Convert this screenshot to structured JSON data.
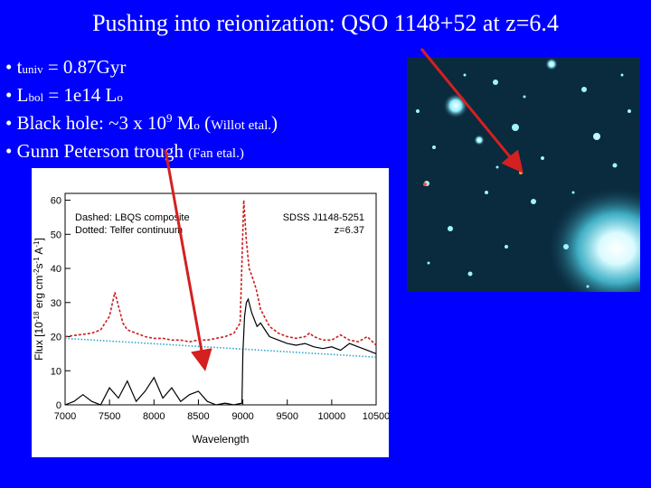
{
  "slide": {
    "title": "Pushing into reionization: QSO 1148+52 at z=6.4",
    "bullets": [
      {
        "bullet": "•",
        "main": "t",
        "sub": "univ",
        "rest": " = 0.87Gyr"
      },
      {
        "bullet": "•",
        "main": "L",
        "sub": "bol",
        "rest": " = 1e14 L",
        "sub2": "o"
      },
      {
        "bullet": "•",
        "main": "Black hole: ~3 x 10",
        "sup": "9",
        "rest": " M",
        "sub": "o",
        "paren_open": " (",
        "cite": "Willot etal.",
        "paren_close": ")"
      },
      {
        "bullet": "•",
        "main": "Gunn Peterson trough ",
        "cite": "(Fan etal.)"
      }
    ]
  },
  "colors": {
    "background": "#0000ff",
    "arrow": "#d42020",
    "composite": "#c81e1e",
    "continuum": "#2aa6c9",
    "spectrum": "#000000"
  },
  "chart_data": {
    "type": "line",
    "xlabel": "Wavelength",
    "ylabel": "Flux [10^-18 erg cm^-2 s^-1 A^-1]",
    "ylabel_parts": {
      "base": "Flux [10",
      "e1": "-18",
      "mid": " erg cm",
      "e2": "-2",
      "s": "s",
      "e3": "-1",
      "a": " A",
      "e4": "-1",
      "close": "]"
    },
    "xlim": [
      7000,
      10500
    ],
    "ylim": [
      0,
      62
    ],
    "xticks": [
      "7000",
      "7500",
      "8000",
      "8500",
      "9000",
      "9500",
      "10000",
      "10500"
    ],
    "yticks": [
      "0",
      "10",
      "20",
      "30",
      "40",
      "50",
      "60"
    ],
    "annotations": {
      "legend_line1": "Dashed: LBQS composite",
      "legend_line2": "Dotted: Telfer continuum",
      "object": "SDSS J1148-5251",
      "redshift": "z=6.37"
    },
    "series": [
      {
        "style": "dashed",
        "x": [
          7000,
          7150,
          7300,
          7400,
          7500,
          7560,
          7600,
          7650,
          7700,
          7800,
          7900,
          8000,
          8100,
          8200,
          8300,
          8400,
          8500,
          8600,
          8700,
          8800,
          8900,
          8970,
          9010,
          9040,
          9070,
          9100,
          9150,
          9200,
          9300,
          9400,
          9500,
          9600,
          9700,
          9750,
          9800,
          9900,
          10000,
          10100,
          10200,
          10300,
          10400,
          10500
        ],
        "y": [
          20,
          20.5,
          21,
          22,
          26,
          33,
          29,
          24,
          22,
          21,
          20,
          19.5,
          19.5,
          19,
          19,
          18.5,
          19,
          19,
          19.5,
          20,
          21,
          24,
          60,
          48,
          40,
          38,
          34,
          28,
          23,
          21,
          20,
          19.5,
          20,
          21,
          20,
          19,
          19,
          20.5,
          19,
          18.5,
          20,
          17.5
        ]
      },
      {
        "style": "dotted",
        "x": [
          7000,
          10500
        ],
        "y": [
          19.5,
          14
        ]
      },
      {
        "style": "solid",
        "x": [
          7000,
          7100,
          7200,
          7300,
          7400,
          7500,
          7600,
          7700,
          7800,
          7900,
          8000,
          8100,
          8200,
          8300,
          8400,
          8500,
          8600,
          8700,
          8800,
          8900,
          8990,
          9000,
          9020,
          9040,
          9060,
          9080,
          9100,
          9130,
          9160,
          9200,
          9250,
          9300,
          9400,
          9500,
          9600,
          9700,
          9800,
          9900,
          10000,
          10100,
          10200,
          10300,
          10400,
          10500
        ],
        "y": [
          0,
          1,
          3,
          1,
          0,
          5,
          2,
          7,
          1,
          4,
          8,
          2,
          5,
          1,
          3,
          4,
          1,
          0,
          0.5,
          0,
          0.5,
          15,
          26,
          30,
          31,
          29,
          27,
          25,
          23,
          24,
          22,
          20,
          19,
          18,
          17.5,
          18,
          17,
          16.5,
          17,
          16,
          18,
          17,
          16,
          15
        ]
      }
    ]
  }
}
